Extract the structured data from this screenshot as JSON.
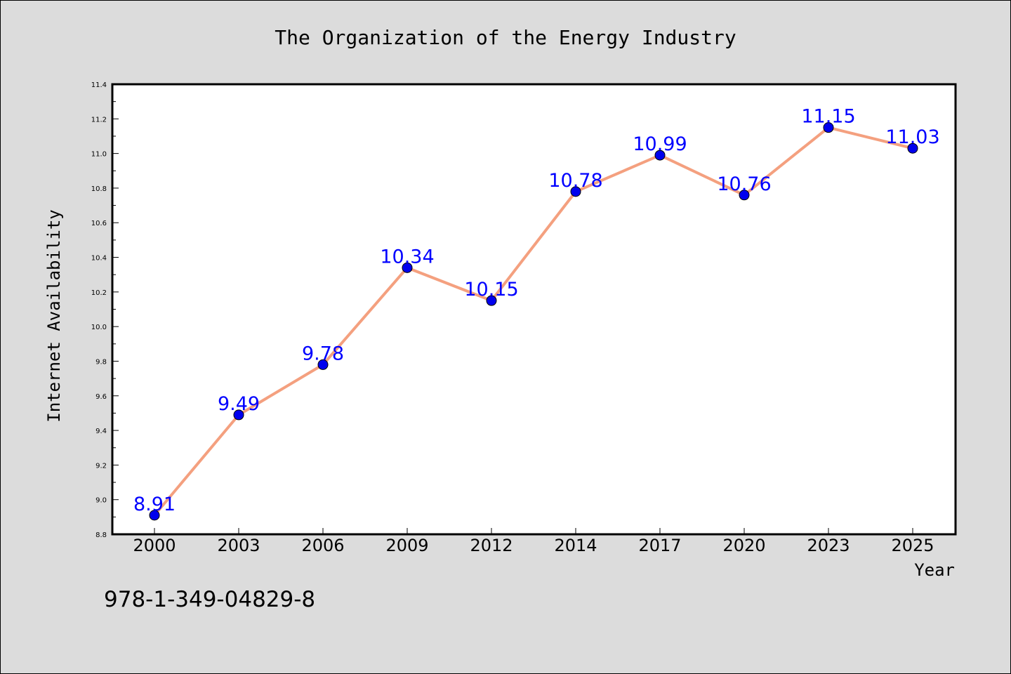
{
  "chart_data": {
    "type": "line",
    "title": "The Organization of the Energy Industry",
    "xlabel": "Year",
    "ylabel": "Internet Availability",
    "categories": [
      "2000",
      "2003",
      "2006",
      "2009",
      "2012",
      "2014",
      "2017",
      "2020",
      "2023",
      "2025"
    ],
    "series": [
      {
        "values": [
          8.91,
          9.49,
          9.78,
          10.34,
          10.15,
          10.78,
          10.99,
          10.76,
          11.15,
          11.03
        ],
        "data_labels": [
          "8.91",
          "9.49",
          "9.78",
          "10.34",
          "10.15",
          "10.78",
          "10.99",
          "10.76",
          "11.15",
          "11.03"
        ]
      }
    ],
    "ylim": [
      8.8,
      11.4
    ],
    "y_ticks": [
      "8.8",
      "9.0",
      "9.2",
      "9.4",
      "9.6",
      "9.8",
      "10.0",
      "10.2",
      "10.4",
      "10.6",
      "10.8",
      "11.0",
      "11.2",
      "11.4"
    ],
    "grid": false,
    "legend": "none",
    "colors": {
      "line": "#f4a07f",
      "marker": "#0000ee",
      "data_label": "#0000ff",
      "plot_bg": "#ffffff",
      "figure_bg": "#dcdcdc"
    },
    "annotation": "978-1-349-04829-8"
  }
}
